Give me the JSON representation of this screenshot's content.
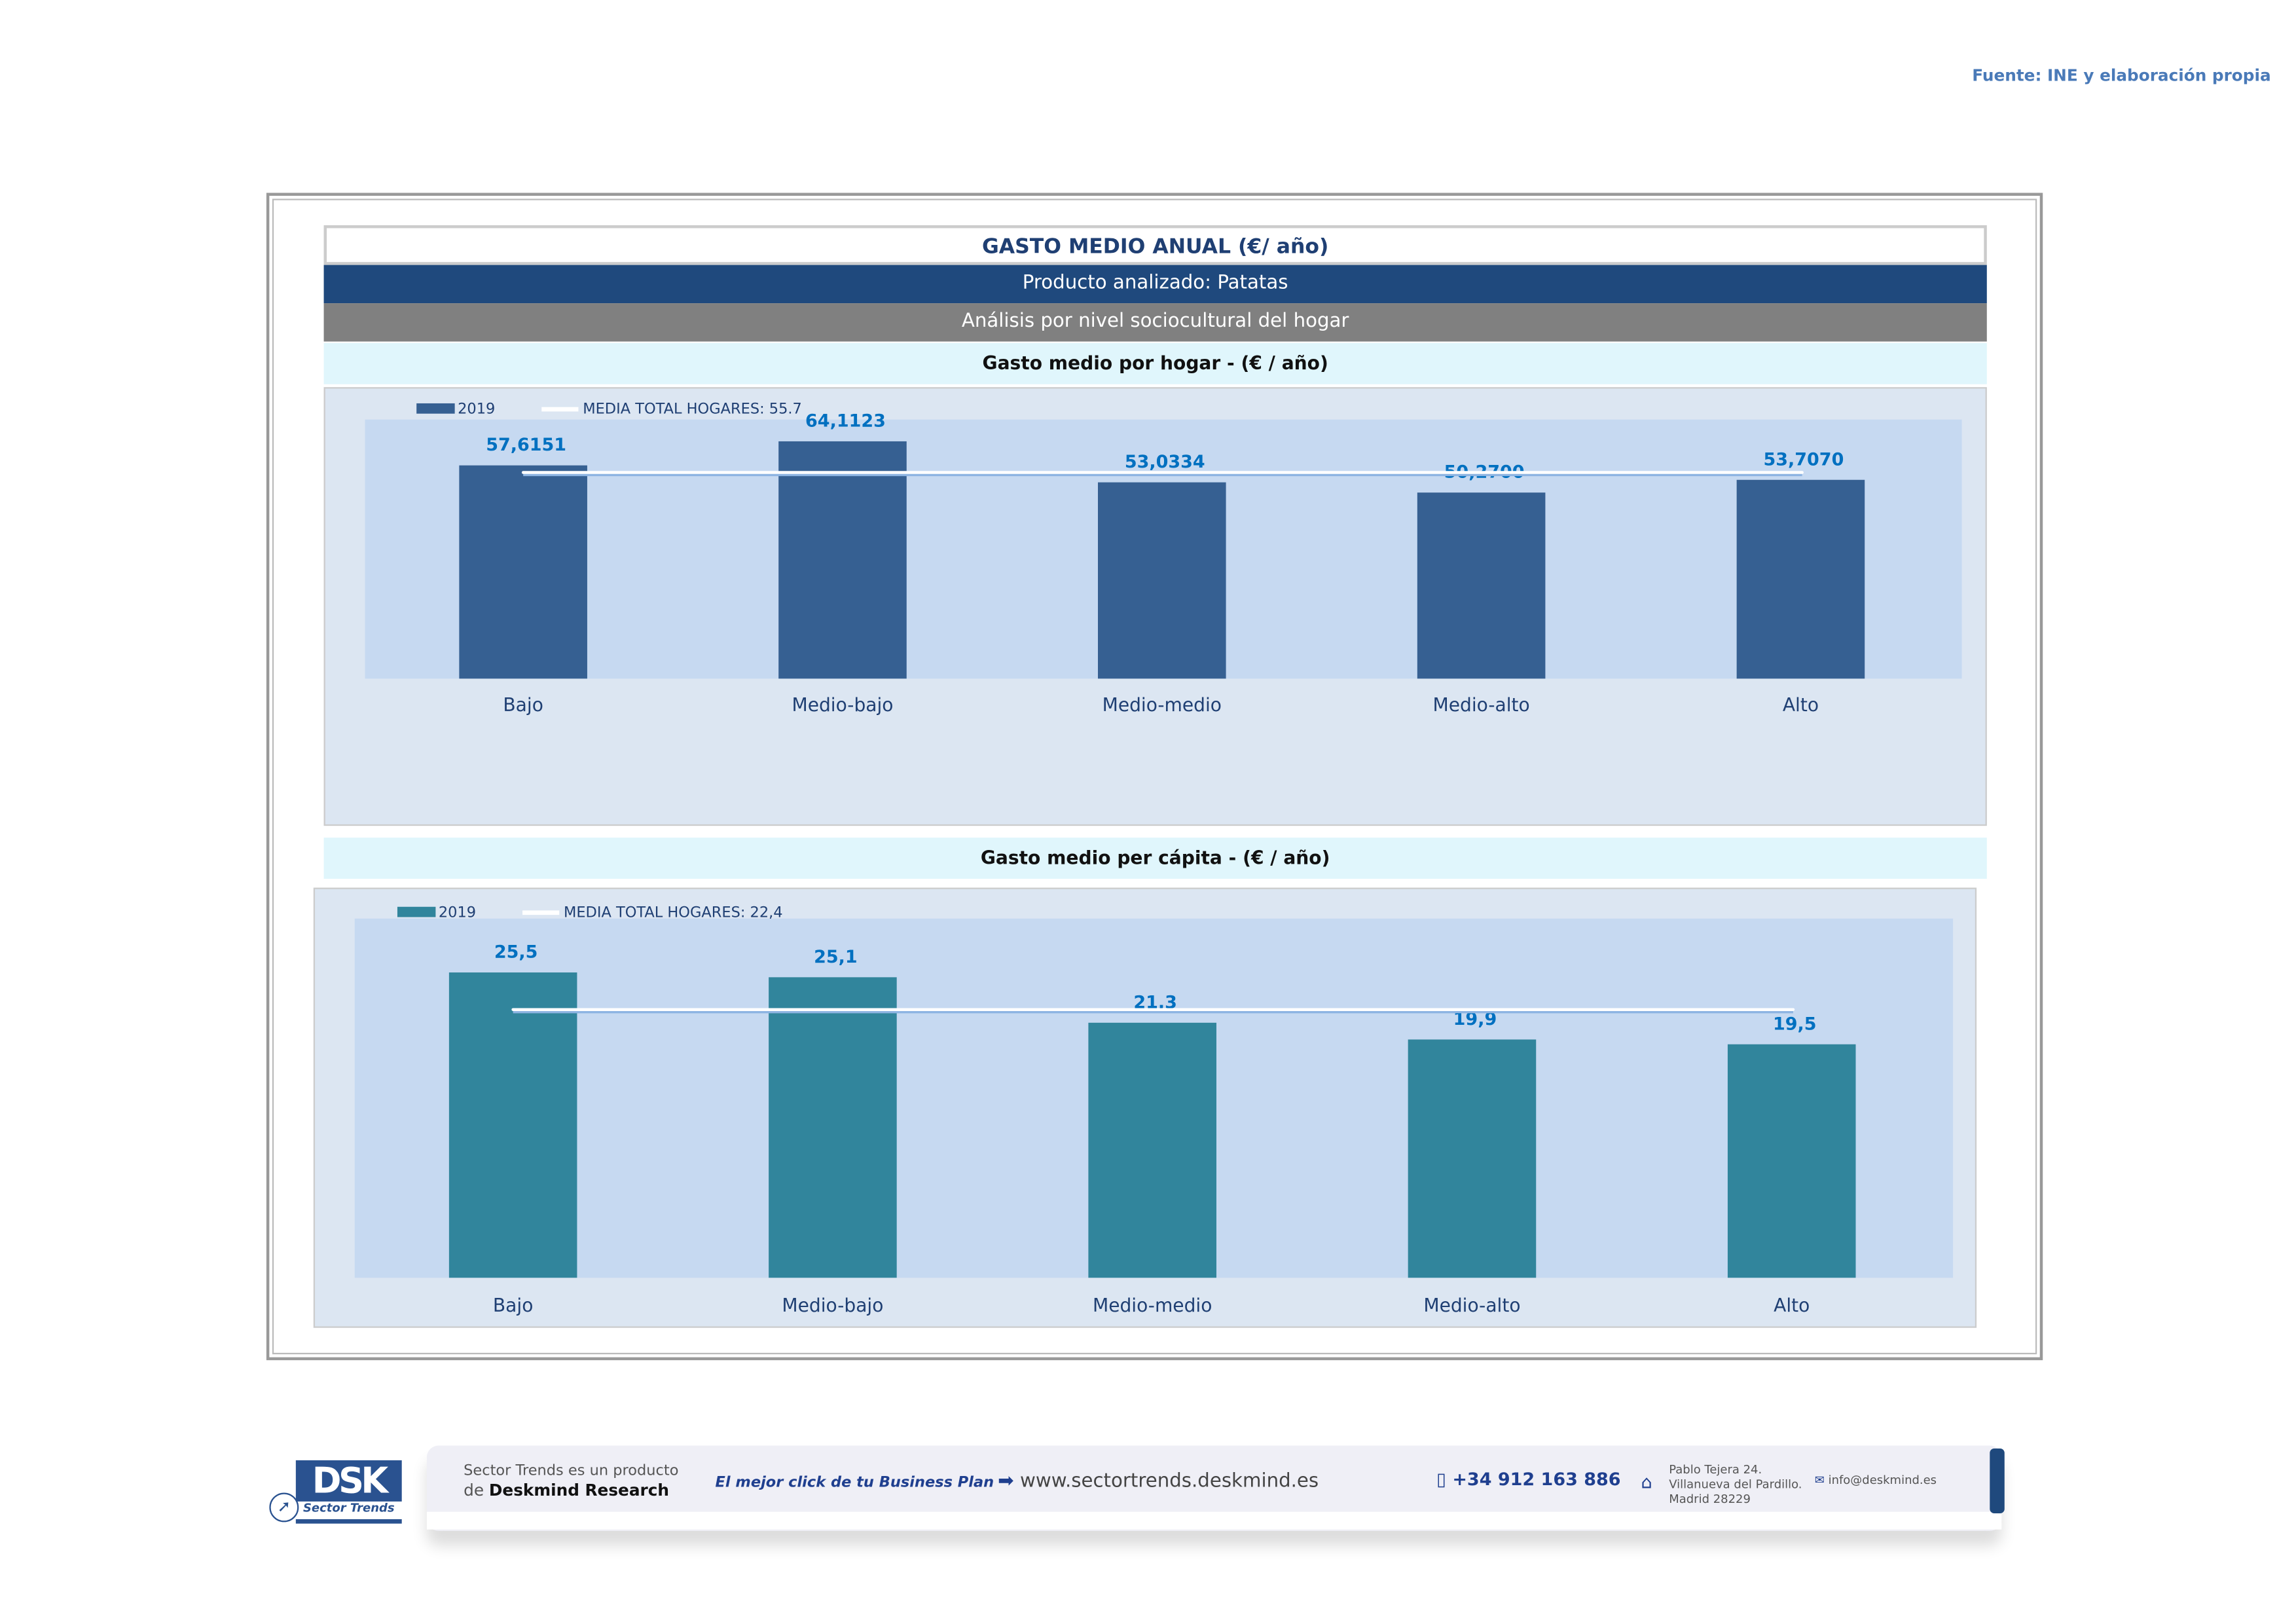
{
  "source": "Fuente: INE y elaboración propia",
  "header": {
    "title": "GASTO MEDIO ANUAL (€/ año)",
    "product": "Producto analizado: Patatas",
    "analysis": "Análisis por nivel sociocultural del hogar"
  },
  "chart_data": [
    {
      "type": "bar",
      "title": "Gasto medio por hogar -  (€ / año)",
      "categories": [
        "Bajo",
        "Medio-bajo",
        "Medio-medio",
        "Medio-alto",
        "Alto"
      ],
      "series": [
        {
          "name": "2019",
          "values": [
            57.6151,
            64.1123,
            53.0334,
            50.27,
            53.707
          ],
          "labels": [
            "57,6151",
            "64,1123",
            "53,0334",
            "50,2700",
            "53,7070"
          ]
        }
      ],
      "reference_line": {
        "name": "MEDIA TOTAL  HOGARES:",
        "value": 55.7,
        "label": "55.7"
      },
      "ylim": [
        0,
        70
      ],
      "bar_color": "#366092",
      "legend": "top-left",
      "grid": false
    },
    {
      "type": "bar",
      "title": "Gasto medio per cápita -  (€ / año)",
      "categories": [
        "Bajo",
        "Medio-bajo",
        "Medio-medio",
        "Medio-alto",
        "Alto"
      ],
      "series": [
        {
          "name": "2019",
          "values": [
            25.5,
            25.1,
            21.3,
            19.9,
            19.5
          ],
          "labels": [
            "25,5",
            "25,1",
            "21,3",
            "19,9",
            "19,5"
          ]
        }
      ],
      "reference_line": {
        "name": "MEDIA TOTAL  HOGARES:",
        "value": 22.4,
        "label": "22,4"
      },
      "ylim": [
        0,
        30
      ],
      "bar_color": "#31859c",
      "legend": "top-left",
      "grid": false
    }
  ],
  "footer": {
    "logo": "DSK Sector Trends",
    "tagline_1": "Sector Trends es un producto",
    "tagline_2_prefix": "de",
    "tagline_2_brand": "Deskmind Research",
    "slogan": "El mejor click de tu Business Plan",
    "website": "www.sectortrends.deskmind.es",
    "phone": "+34 912 163 886",
    "address": [
      "Pablo Tejera 24.",
      "Villanueva del Pardillo.",
      "Madrid 28229"
    ],
    "email": "info@deskmind.es"
  }
}
